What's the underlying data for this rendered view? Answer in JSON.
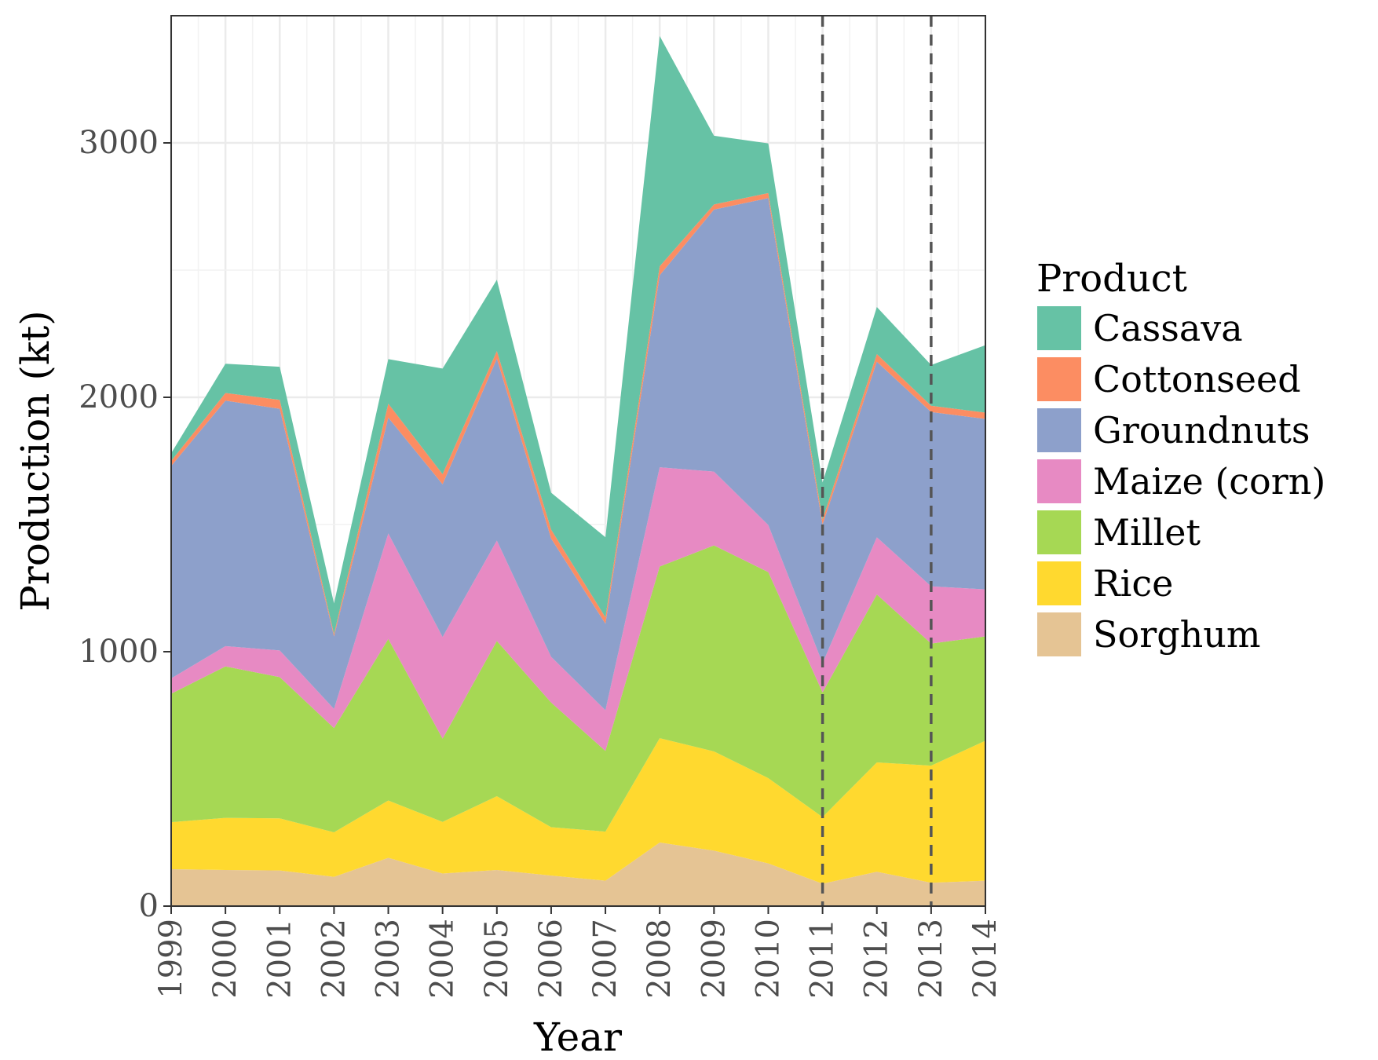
{
  "chart_data": {
    "type": "area",
    "stacked": true,
    "xlabel": "Year",
    "ylabel": "Production (kt)",
    "x": [
      1999,
      2000,
      2001,
      2002,
      2003,
      2004,
      2005,
      2006,
      2007,
      2008,
      2009,
      2010,
      2011,
      2012,
      2013,
      2014
    ],
    "x_tick_labels": [
      "1999",
      "2000",
      "2001",
      "2002",
      "2003",
      "2004",
      "2005",
      "2006",
      "2007",
      "2008",
      "2009",
      "2010",
      "2011",
      "2012",
      "2013",
      "2014"
    ],
    "ylim": [
      0,
      3500
    ],
    "y_ticks": [
      0,
      1000,
      2000,
      3000
    ],
    "y_tick_labels": [
      "0",
      "1000",
      "2000",
      "3000"
    ],
    "grid": true,
    "legend": {
      "title": "Product",
      "position": "right"
    },
    "vlines": [
      2011,
      2013
    ],
    "series": [
      {
        "name": "Sorghum",
        "color": "#e5c494",
        "values": [
          145,
          142,
          140,
          115,
          190,
          128,
          142,
          120,
          100,
          250,
          218,
          168,
          88,
          135,
          92,
          100
        ]
      },
      {
        "name": "Rice",
        "color": "#ffd92f",
        "values": [
          185,
          205,
          205,
          175,
          225,
          203,
          290,
          190,
          193,
          410,
          390,
          335,
          262,
          430,
          460,
          550
        ]
      },
      {
        "name": "Millet",
        "color": "#a6d854",
        "values": [
          505,
          595,
          555,
          410,
          635,
          327,
          610,
          490,
          317,
          675,
          810,
          810,
          490,
          660,
          480,
          410
        ]
      },
      {
        "name": "Maize (corn)",
        "color": "#e78ac3",
        "values": [
          60,
          80,
          105,
          75,
          415,
          400,
          395,
          180,
          160,
          390,
          290,
          185,
          115,
          225,
          225,
          185
        ]
      },
      {
        "name": "Groundnuts",
        "color": "#8da0cb",
        "values": [
          835,
          965,
          950,
          285,
          455,
          600,
          715,
          465,
          340,
          755,
          1030,
          1285,
          545,
          690,
          685,
          670
        ]
      },
      {
        "name": "Cottonseed",
        "color": "#fc8d62",
        "values": [
          20,
          30,
          35,
          10,
          55,
          40,
          30,
          35,
          25,
          35,
          20,
          20,
          20,
          30,
          25,
          25
        ]
      },
      {
        "name": "Cassava",
        "color": "#66c2a5",
        "values": [
          30,
          115,
          130,
          120,
          175,
          415,
          280,
          145,
          315,
          905,
          270,
          195,
          145,
          185,
          160,
          265
        ]
      }
    ],
    "legend_order": [
      "Cassava",
      "Cottonseed",
      "Groundnuts",
      "Maize (corn)",
      "Millet",
      "Rice",
      "Sorghum"
    ]
  }
}
